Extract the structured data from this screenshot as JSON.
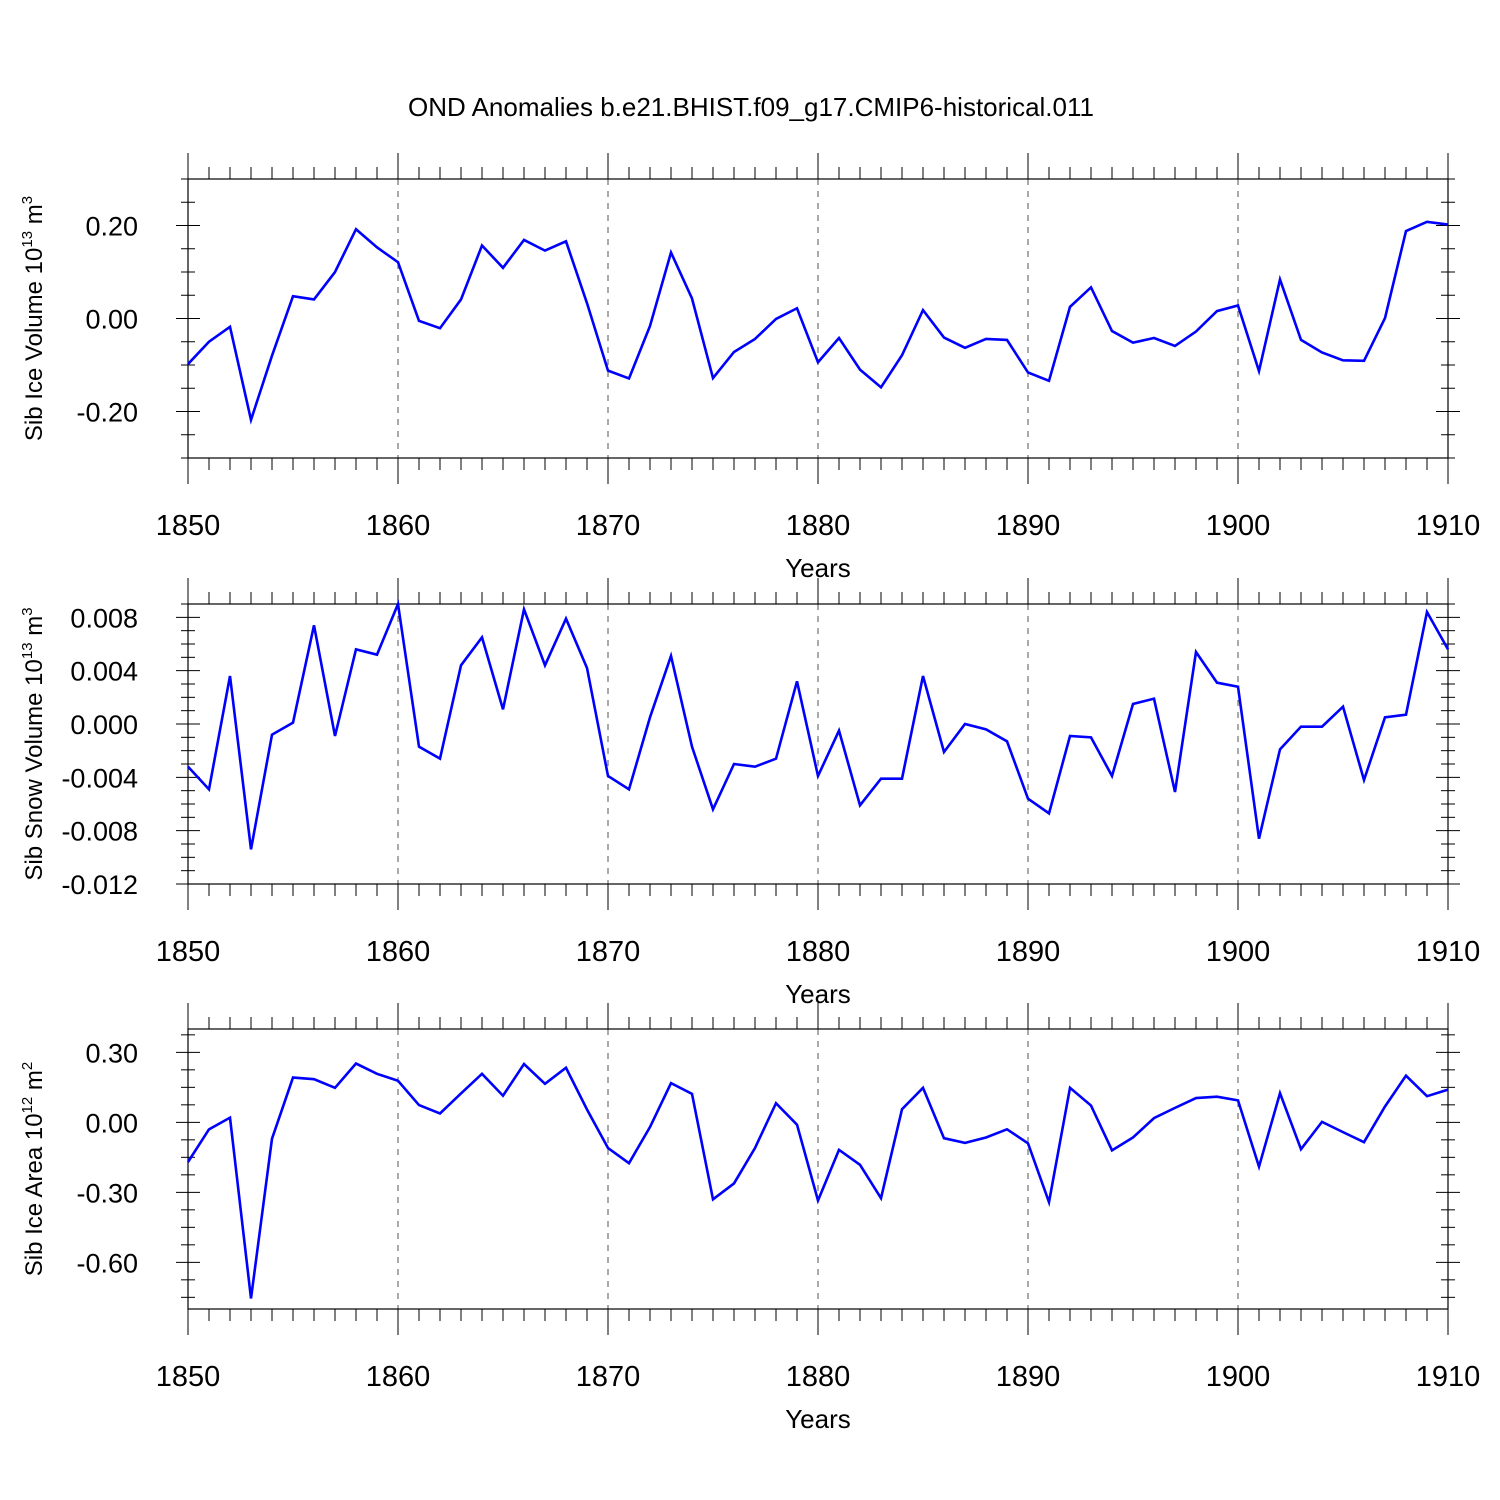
{
  "figure_title": "OND Anomalies b.e21.BHIST.f09_g17.CMIP6-historical.011",
  "colors": {
    "line": "#0000ff",
    "axis": "#000000",
    "grid": "#555555"
  },
  "chart_data": [
    {
      "type": "line",
      "ylabel_text": "Sib Ice Volume 10",
      "ylabel_exp": "13",
      "ylabel_unit": " m",
      "ylabel_unit_exp": "3",
      "xlabel": "Years",
      "xlim": [
        1850,
        1910
      ],
      "ylim": [
        -0.3,
        0.3
      ],
      "x_ticks": [
        "1850",
        "1860",
        "1870",
        "1880",
        "1890",
        "1900",
        "1910"
      ],
      "y_ticks": [
        0.2,
        0.0,
        -0.2
      ],
      "y_tick_labels": [
        "0.20",
        "0.00",
        "-0.20"
      ],
      "y_minor_step": 0.05,
      "grid": "vertical dashed at major x ticks",
      "series": [
        {
          "name": "Sib Ice Volume",
          "x": [
            1850,
            1851,
            1852,
            1853,
            1854,
            1855,
            1856,
            1857,
            1858,
            1859,
            1860,
            1861,
            1862,
            1863,
            1864,
            1865,
            1866,
            1867,
            1868,
            1869,
            1870,
            1871,
            1872,
            1873,
            1874,
            1875,
            1876,
            1877,
            1878,
            1879,
            1880,
            1881,
            1882,
            1883,
            1884,
            1885,
            1886,
            1887,
            1888,
            1889,
            1890,
            1891,
            1892,
            1893,
            1894,
            1895,
            1896,
            1897,
            1898,
            1899,
            1900,
            1901,
            1902,
            1903,
            1904,
            1905,
            1906,
            1907,
            1908,
            1909,
            1910
          ],
          "values": [
            -0.098,
            -0.05,
            -0.018,
            -0.218,
            -0.08,
            0.048,
            0.041,
            0.1,
            0.192,
            0.153,
            0.121,
            -0.005,
            -0.021,
            0.041,
            0.157,
            0.109,
            0.169,
            0.146,
            0.166,
            0.033,
            -0.112,
            -0.129,
            -0.016,
            0.142,
            0.043,
            -0.128,
            -0.072,
            -0.044,
            -0.001,
            0.022,
            -0.094,
            -0.042,
            -0.11,
            -0.148,
            -0.079,
            0.018,
            -0.041,
            -0.063,
            -0.044,
            -0.046,
            -0.116,
            -0.134,
            0.025,
            0.067,
            -0.027,
            -0.052,
            -0.042,
            -0.059,
            -0.028,
            0.016,
            0.028,
            -0.113,
            0.084,
            -0.046,
            -0.073,
            -0.09,
            -0.091,
            0.001,
            0.188,
            0.208,
            0.202
          ]
        }
      ]
    },
    {
      "type": "line",
      "ylabel_text": "Sib Snow Volume 10",
      "ylabel_exp": "13",
      "ylabel_unit": " m",
      "ylabel_unit_exp": "3",
      "xlabel": "Years",
      "xlim": [
        1850,
        1910
      ],
      "ylim": [
        -0.012,
        0.009
      ],
      "x_ticks": [
        "1850",
        "1860",
        "1870",
        "1880",
        "1890",
        "1900",
        "1910"
      ],
      "y_ticks": [
        0.008,
        0.004,
        0.0,
        -0.004,
        -0.008,
        -0.012
      ],
      "y_tick_labels": [
        "0.008",
        "0.004",
        "0.000",
        "-0.004",
        "-0.008",
        "-0.012"
      ],
      "y_minor_step": 0.001,
      "grid": "vertical dashed at major x ticks",
      "series": [
        {
          "name": "Sib Snow Volume",
          "x": [
            1850,
            1851,
            1852,
            1853,
            1854,
            1855,
            1856,
            1857,
            1858,
            1859,
            1860,
            1861,
            1862,
            1863,
            1864,
            1865,
            1866,
            1867,
            1868,
            1869,
            1870,
            1871,
            1872,
            1873,
            1874,
            1875,
            1876,
            1877,
            1878,
            1879,
            1880,
            1881,
            1882,
            1883,
            1884,
            1885,
            1886,
            1887,
            1888,
            1889,
            1890,
            1891,
            1892,
            1893,
            1894,
            1895,
            1896,
            1897,
            1898,
            1899,
            1900,
            1901,
            1902,
            1903,
            1904,
            1905,
            1906,
            1907,
            1908,
            1909,
            1910
          ],
          "values": [
            -0.0032,
            -0.0049,
            0.0036,
            -0.0094,
            -0.0008,
            0.0001,
            0.0074,
            -0.0009,
            0.0056,
            0.0052,
            0.009,
            -0.0017,
            -0.0026,
            0.0044,
            0.0065,
            0.0011,
            0.0086,
            0.0044,
            0.0079,
            0.0042,
            -0.0039,
            -0.0049,
            0.0005,
            0.0051,
            -0.0017,
            -0.0064,
            -0.003,
            -0.0032,
            -0.0026,
            0.0032,
            -0.0039,
            -0.0005,
            -0.0061,
            -0.0041,
            -0.0041,
            0.0036,
            -0.0021,
            -0.0,
            -0.0004,
            -0.0013,
            -0.0056,
            -0.0067,
            -0.0009,
            -0.001,
            -0.0039,
            0.0015,
            0.0019,
            -0.0051,
            0.0054,
            0.0031,
            0.0028,
            -0.0086,
            -0.0019,
            -0.0002,
            -0.0002,
            0.0013,
            -0.0042,
            0.0005,
            0.0007,
            0.0084,
            0.0056
          ]
        }
      ]
    },
    {
      "type": "line",
      "ylabel_text": "Sib Ice Area 10",
      "ylabel_exp": "12",
      "ylabel_unit": " m",
      "ylabel_unit_exp": "2",
      "xlabel": "Years",
      "xlim": [
        1850,
        1910
      ],
      "ylim": [
        -0.8,
        0.4
      ],
      "x_ticks": [
        "1850",
        "1860",
        "1870",
        "1880",
        "1890",
        "1900",
        "1910"
      ],
      "y_ticks": [
        0.3,
        0.0,
        -0.3,
        -0.6
      ],
      "y_tick_labels": [
        "0.30",
        "0.00",
        "-0.30",
        "-0.60"
      ],
      "y_minor_step": 0.075,
      "grid": "vertical dashed at major x ticks",
      "series": [
        {
          "name": "Sib Ice Area",
          "x": [
            1850,
            1851,
            1852,
            1853,
            1854,
            1855,
            1856,
            1857,
            1858,
            1859,
            1860,
            1861,
            1862,
            1863,
            1864,
            1865,
            1866,
            1867,
            1868,
            1869,
            1870,
            1871,
            1872,
            1873,
            1874,
            1875,
            1876,
            1877,
            1878,
            1879,
            1880,
            1881,
            1882,
            1883,
            1884,
            1885,
            1886,
            1887,
            1888,
            1889,
            1890,
            1891,
            1892,
            1893,
            1894,
            1895,
            1896,
            1897,
            1898,
            1899,
            1900,
            1901,
            1902,
            1903,
            1904,
            1905,
            1906,
            1907,
            1908,
            1909,
            1910
          ],
          "values": [
            -0.17,
            -0.03,
            0.02,
            -0.755,
            -0.07,
            0.192,
            0.185,
            0.148,
            0.252,
            0.208,
            0.178,
            0.074,
            0.038,
            0.124,
            0.208,
            0.114,
            0.25,
            0.165,
            0.234,
            0.055,
            -0.11,
            -0.175,
            -0.02,
            0.168,
            0.122,
            -0.33,
            -0.262,
            -0.11,
            0.082,
            -0.01,
            -0.335,
            -0.118,
            -0.182,
            -0.325,
            0.056,
            0.148,
            -0.068,
            -0.088,
            -0.065,
            -0.03,
            -0.09,
            -0.342,
            0.148,
            0.072,
            -0.12,
            -0.065,
            0.018,
            0.062,
            0.104,
            0.11,
            0.094,
            -0.19,
            0.125,
            -0.115,
            0.002,
            -0.042,
            -0.085,
            0.068,
            0.2,
            0.112,
            0.14
          ]
        }
      ]
    }
  ]
}
